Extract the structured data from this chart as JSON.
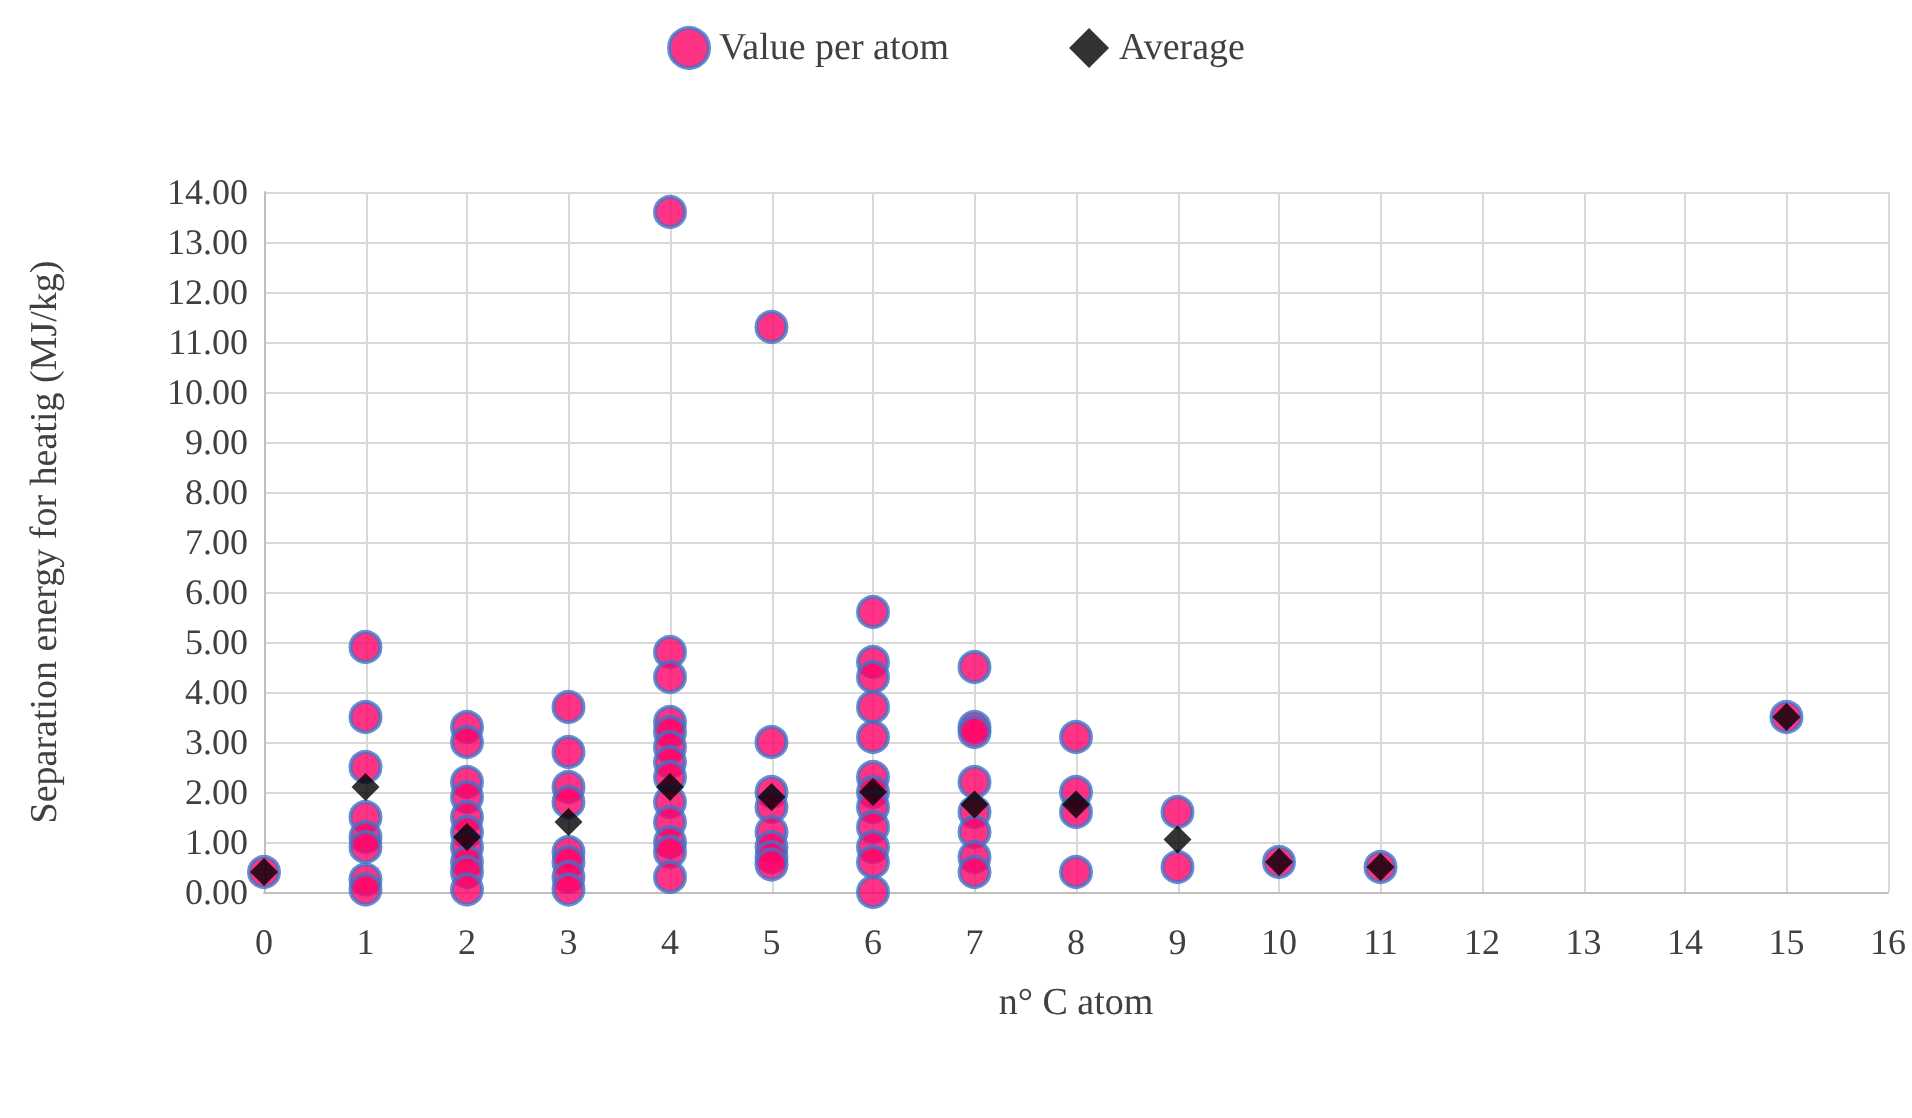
{
  "chart_data": {
    "type": "scatter",
    "xlabel": "n° C atom",
    "ylabel": "Separation energy for heatig (MJ/kg)",
    "xlim": [
      0,
      16
    ],
    "xticks": [
      0,
      1,
      2,
      3,
      4,
      5,
      6,
      7,
      8,
      9,
      10,
      11,
      12,
      13,
      14,
      15,
      16
    ],
    "ylim": [
      0,
      14
    ],
    "yticks": [
      {
        "value": 0,
        "label": "0.00"
      },
      {
        "value": 1,
        "label": "1.00"
      },
      {
        "value": 2,
        "label": "2.00"
      },
      {
        "value": 3,
        "label": "3.00"
      },
      {
        "value": 4,
        "label": "4.00"
      },
      {
        "value": 5,
        "label": "5.00"
      },
      {
        "value": 6,
        "label": "6.00"
      },
      {
        "value": 7,
        "label": "7.00"
      },
      {
        "value": 8,
        "label": "8.00"
      },
      {
        "value": 9,
        "label": "9.00"
      },
      {
        "value": 10,
        "label": "10.00"
      },
      {
        "value": 11,
        "label": "11.00"
      },
      {
        "value": 12,
        "label": "12.00"
      },
      {
        "value": 13,
        "label": "13.00"
      },
      {
        "value": 14,
        "label": "14.00"
      }
    ],
    "grid": true,
    "legend": "top",
    "series": [
      {
        "name": "Value per atom",
        "color": "#ff0066",
        "marker": "circle",
        "x": [
          0,
          1,
          1,
          1,
          1,
          1,
          1,
          1,
          1,
          2,
          2,
          2,
          2,
          2,
          2,
          2,
          2,
          2,
          2,
          3,
          3,
          3,
          3,
          3,
          3,
          3,
          3,
          4,
          4,
          4,
          4,
          4,
          4,
          4,
          4,
          4,
          4,
          4,
          4,
          4,
          5,
          5,
          5,
          5,
          5,
          5,
          5,
          5,
          6,
          6,
          6,
          6,
          6,
          6,
          6,
          6,
          6,
          6,
          6,
          6,
          7,
          7,
          7,
          7,
          7,
          7,
          7,
          7,
          8,
          8,
          8,
          8,
          9,
          9,
          10,
          11,
          15
        ],
        "values": [
          0.4,
          4.9,
          3.5,
          2.5,
          1.5,
          1.1,
          0.9,
          0.25,
          0.05,
          3.3,
          3.0,
          2.2,
          1.9,
          1.5,
          1.2,
          0.9,
          0.6,
          0.4,
          0.05,
          3.7,
          2.8,
          2.1,
          1.8,
          0.8,
          0.6,
          0.3,
          0.05,
          13.6,
          4.8,
          4.3,
          3.4,
          3.2,
          2.9,
          2.6,
          2.3,
          1.8,
          1.4,
          1.0,
          0.8,
          0.3,
          11.3,
          3.0,
          2.0,
          1.7,
          1.2,
          0.9,
          0.7,
          0.55,
          5.6,
          4.6,
          4.3,
          3.7,
          3.1,
          2.3,
          2.0,
          1.7,
          1.3,
          0.9,
          0.6,
          0.0,
          4.5,
          3.3,
          3.2,
          2.2,
          1.6,
          1.2,
          0.7,
          0.4,
          3.1,
          2.0,
          1.6,
          0.4,
          1.6,
          0.5,
          0.6,
          0.5,
          3.5
        ]
      },
      {
        "name": "Average",
        "color": "#000000",
        "marker": "diamond",
        "x": [
          0,
          1,
          2,
          3,
          4,
          5,
          6,
          7,
          8,
          9,
          10,
          11,
          15
        ],
        "values": [
          0.4,
          2.1,
          1.1,
          1.4,
          2.1,
          1.9,
          2.0,
          1.75,
          1.75,
          1.05,
          0.6,
          0.5,
          3.5
        ]
      }
    ]
  }
}
